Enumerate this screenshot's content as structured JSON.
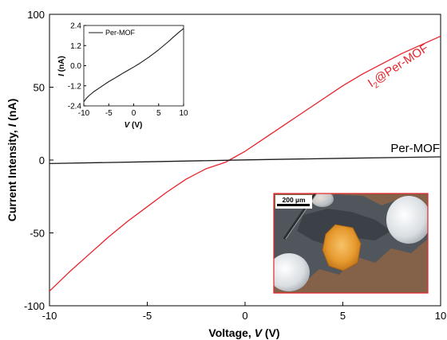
{
  "chart_data": [
    {
      "type": "line",
      "xlabel": "Voltage, V (V)",
      "xlabel_parts": [
        "Voltage, ",
        "V",
        " (V)"
      ],
      "ylabel": "Current Intensity, I (nA)",
      "ylabel_parts": [
        "Current Intensity, ",
        "I",
        " (nA)"
      ],
      "xlim": [
        -10,
        10
      ],
      "ylim": [
        -100,
        100
      ],
      "xticks": [
        "-10",
        "-5",
        "0",
        "5",
        "10"
      ],
      "yticks": [
        "100",
        "50",
        "0",
        "-50",
        "-100"
      ],
      "grid": false,
      "series": [
        {
          "name": "I2@Per-MOF",
          "label_main": "I",
          "label_sub": "2",
          "label_rest": "@Per-MOF",
          "color": "#e8232b",
          "x": [
            -10,
            -9,
            -8,
            -7,
            -6,
            -5,
            -4,
            -3,
            -2,
            -1,
            -0.8,
            0,
            1,
            2,
            3,
            4,
            5,
            6,
            7,
            8,
            9,
            10
          ],
          "y": [
            -90,
            -77,
            -65,
            -53,
            -42,
            -32,
            -22,
            -13,
            -6,
            -1.5,
            0,
            6,
            15,
            24,
            33,
            42,
            51,
            59,
            66,
            73,
            79,
            85
          ]
        },
        {
          "name": "Per-MOF",
          "color": "#1a1a1a",
          "x": [
            -10,
            -5,
            0,
            5,
            10
          ],
          "y": [
            -2.4,
            -1.2,
            0.1,
            1.2,
            2.2
          ]
        }
      ]
    },
    {
      "type": "line",
      "xlabel": "V (V)",
      "xlabel_parts": [
        "V",
        " (V)"
      ],
      "ylabel": "I (nA)",
      "ylabel_parts": [
        "I",
        " (nA)"
      ],
      "xlim": [
        -10,
        10
      ],
      "ylim": [
        -2.4,
        2.4
      ],
      "xticks": [
        "-10",
        "-5",
        "0",
        "5",
        "10"
      ],
      "yticks": [
        "2.4",
        "1.2",
        "0.0",
        "-1.2",
        "-2.4"
      ],
      "legend": "top-left",
      "series": [
        {
          "name": "Per-MOF",
          "color": "#1a1a1a",
          "x": [
            -10,
            -9.5,
            -9,
            -8,
            -7,
            -6,
            -5,
            -4,
            -3,
            -2,
            -1,
            0,
            1,
            2,
            3,
            4,
            5,
            6,
            7,
            8,
            9,
            10
          ],
          "y": [
            -2.15,
            -1.95,
            -1.8,
            -1.55,
            -1.35,
            -1.15,
            -0.95,
            -0.78,
            -0.6,
            -0.42,
            -0.25,
            -0.08,
            0.1,
            0.3,
            0.5,
            0.72,
            0.95,
            1.2,
            1.45,
            1.72,
            1.98,
            2.22
          ]
        }
      ]
    }
  ],
  "micrograph": {
    "scale_bar": "200 µm"
  }
}
